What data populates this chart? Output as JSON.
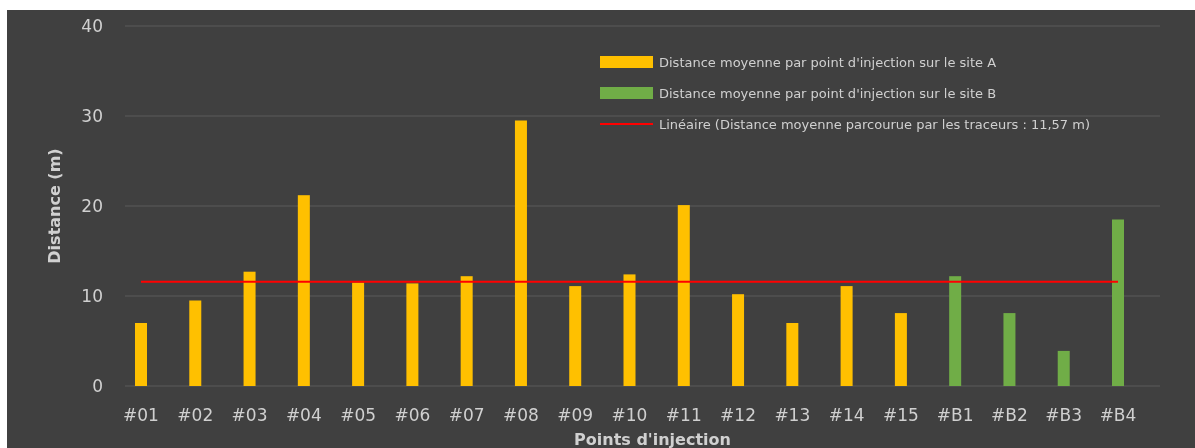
{
  "chart_data": {
    "type": "bar",
    "xlabel": "Points d'injection",
    "ylabel": "Distance (m)",
    "categories": [
      "#01",
      "#02",
      "#03",
      "#04",
      "#05",
      "#06",
      "#07",
      "#08",
      "#09",
      "#10",
      "#11",
      "#12",
      "#13",
      "#14",
      "#15",
      "#B1",
      "#B2",
      "#B3",
      "#B4"
    ],
    "series": [
      {
        "name": "Distance moyenne par point d'injection sur le site A",
        "color": "#ffc000",
        "values": [
          7.0,
          9.5,
          12.7,
          21.2,
          11.5,
          11.4,
          12.2,
          29.5,
          11.1,
          12.4,
          20.1,
          10.2,
          7.0,
          11.1,
          8.1,
          null,
          null,
          null,
          null
        ]
      },
      {
        "name": "Distance moyenne par point d'injection sur le site B",
        "color": "#70ad47",
        "values": [
          null,
          null,
          null,
          null,
          null,
          null,
          null,
          null,
          null,
          null,
          null,
          null,
          null,
          null,
          null,
          12.2,
          8.1,
          3.9,
          18.5
        ]
      }
    ],
    "ref_lines": [
      {
        "axis": "y",
        "value": 11.57,
        "label": "Linéaire (Distance moyenne parcourue par les traceurs : 11,57 m)",
        "color": "#ff0000",
        "line_style": "solid"
      }
    ],
    "ylim": [
      0,
      40
    ],
    "yticks": [
      0,
      10,
      20,
      30,
      40
    ],
    "grid": "y",
    "legend": "top right"
  }
}
